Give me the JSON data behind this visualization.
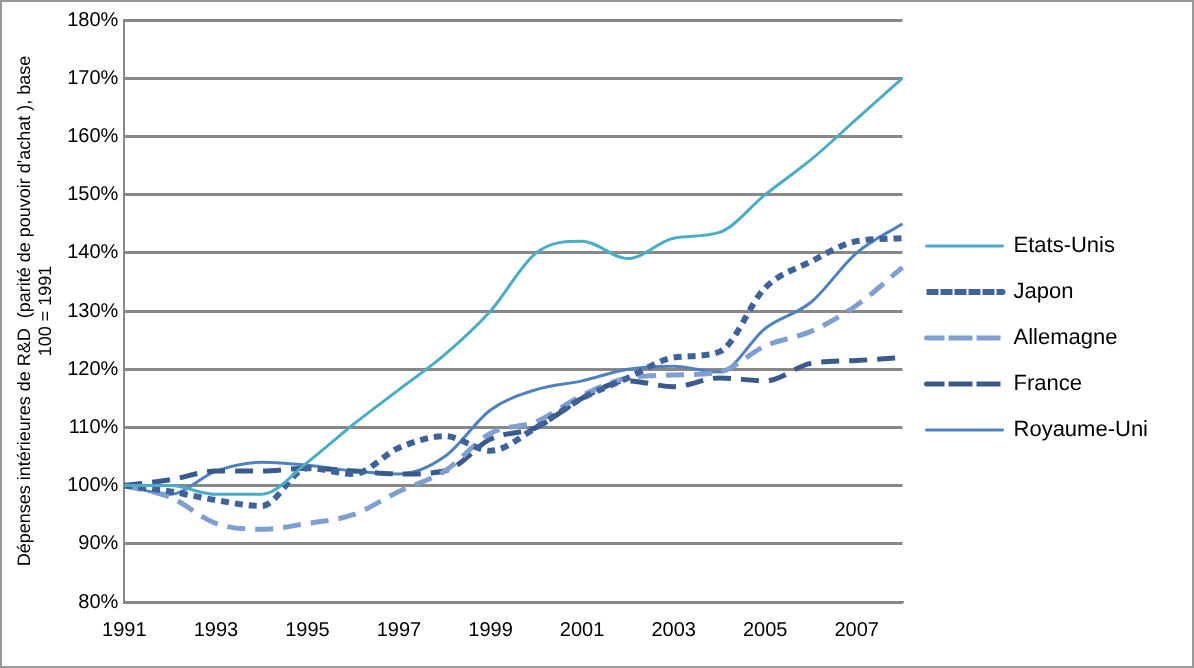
{
  "chart_data": {
    "type": "line",
    "ylabel": "Dépenses intérieures de R&D  (parité de pouvoir d'achat ), base\n100 = 1991",
    "categories": [
      "1991",
      null,
      "1993",
      null,
      "1995",
      null,
      "1997",
      null,
      "1999",
      null,
      "2001",
      null,
      "2003",
      null,
      "2005",
      null,
      "2007",
      null
    ],
    "series": [
      {
        "name": "Etats-Unis",
        "color": "#4bacc6",
        "line_style": "solid",
        "values": [
          100,
          100,
          98.5,
          98.5,
          104,
          110.5,
          116.5,
          122.5,
          130,
          140,
          142,
          139,
          142.5,
          143.5,
          150,
          156,
          163,
          170
        ]
      },
      {
        "name": "Japon",
        "color": "#3f6398",
        "line_style": "dotted",
        "values": [
          100,
          99,
          97.5,
          96.5,
          103,
          102,
          106.5,
          108.5,
          106,
          110,
          115,
          118.5,
          122,
          123,
          134,
          138.5,
          142,
          142.5
        ]
      },
      {
        "name": "Allemagne",
        "color": "#7f9fd0",
        "line_style": "dashed",
        "values": [
          100,
          98,
          93.5,
          92.5,
          93.5,
          95,
          99,
          102.5,
          109,
          111,
          115.5,
          118.5,
          119,
          119.5,
          124,
          126.5,
          131,
          137.5
        ]
      },
      {
        "name": "France",
        "color": "#3a5a8a",
        "line_style": "dashed",
        "values": [
          100,
          101,
          102.5,
          102.5,
          103,
          102.5,
          102,
          102.5,
          108,
          110,
          115,
          118,
          117,
          118.5,
          118,
          121,
          121.5,
          122
        ]
      },
      {
        "name": "Royaume-Uni",
        "color": "#4f81bd",
        "line_style": "solid",
        "values": [
          100,
          98.5,
          102.5,
          104,
          103.5,
          102.5,
          102,
          105,
          113,
          116.5,
          118,
          120,
          120.5,
          119.5,
          127,
          131.5,
          140,
          145
        ]
      }
    ],
    "ylim": [
      80,
      180
    ],
    "yticks": [
      {
        "value": 80,
        "label": "80%"
      },
      {
        "value": 90,
        "label": "90%"
      },
      {
        "value": 100,
        "label": "100%"
      },
      {
        "value": 110,
        "label": "110%"
      },
      {
        "value": 120,
        "label": "120%"
      },
      {
        "value": 130,
        "label": "130%"
      },
      {
        "value": 140,
        "label": "140%"
      },
      {
        "value": 150,
        "label": "150%"
      },
      {
        "value": 160,
        "label": "160%"
      },
      {
        "value": 170,
        "label": "170%"
      },
      {
        "value": 180,
        "label": "180%"
      }
    ],
    "grid": "y",
    "legend": "right",
    "marker": "none"
  }
}
